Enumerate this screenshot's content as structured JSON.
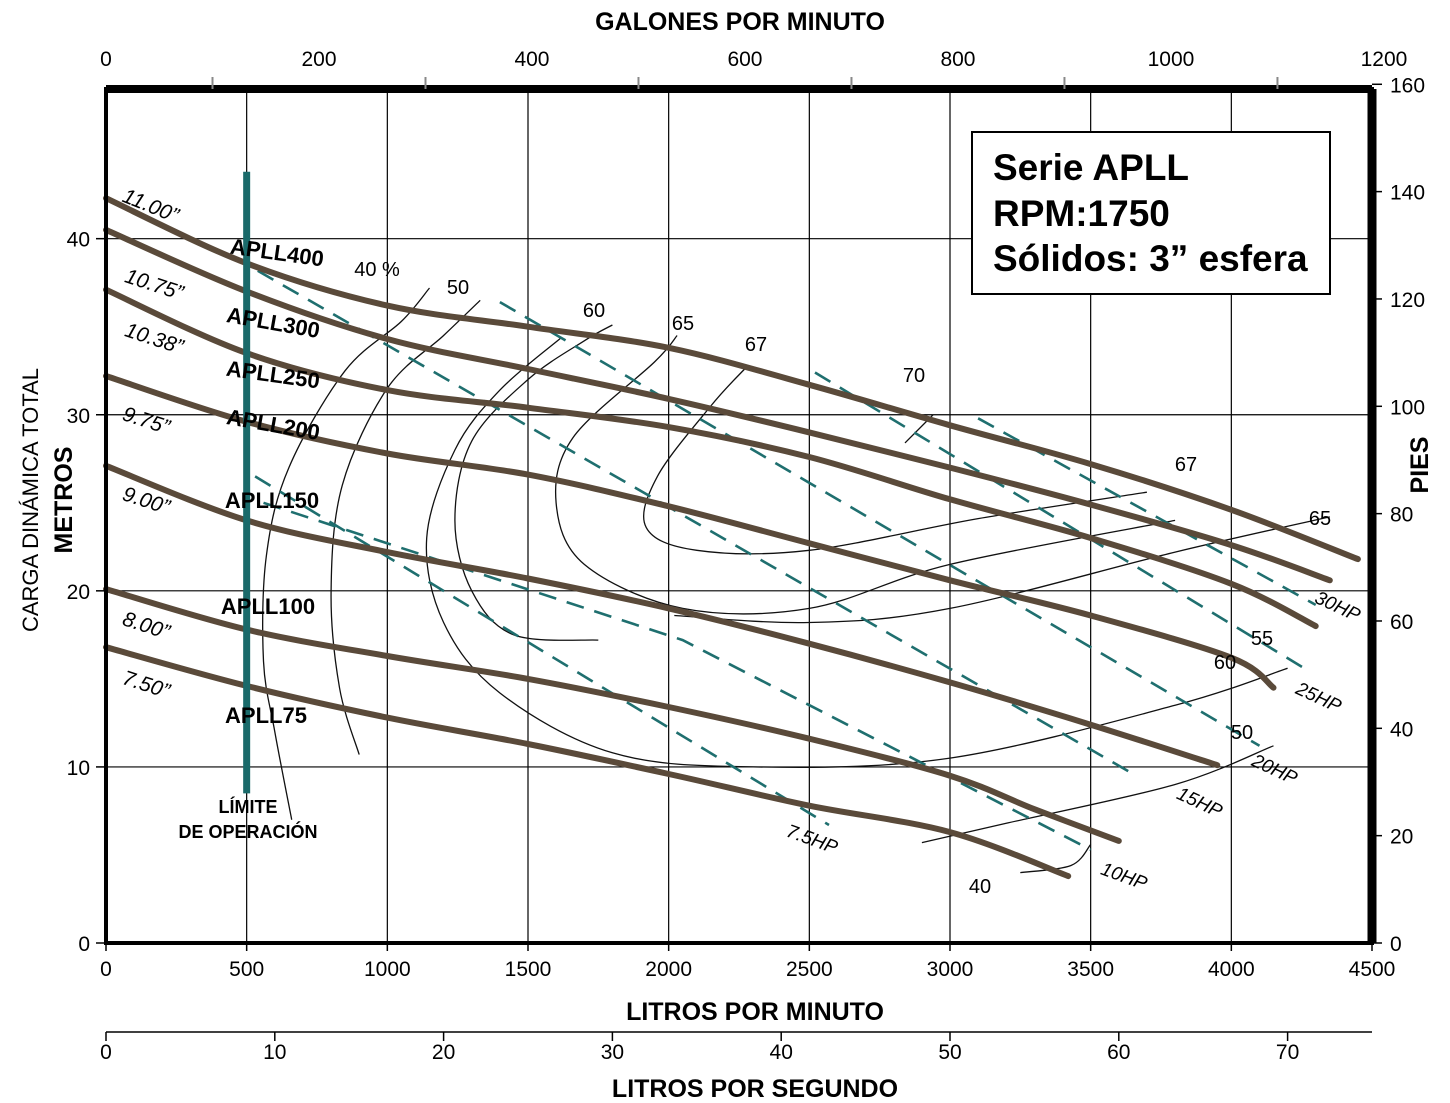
{
  "colors": {
    "head_curve": "#5a4a3a",
    "hp_line": "#1f6f6f",
    "limit_line": "#1a6a6a",
    "grid": "#000000",
    "frame": "#000000"
  },
  "chart_data": {
    "type": "line",
    "info_box": [
      "Serie APLL",
      "RPM:1750",
      "Sólidos: 3” esfera"
    ],
    "axes": {
      "x_bottom": {
        "label": "LITROS POR MINUTO",
        "range": [
          0,
          4500
        ],
        "ticks": [
          "0",
          "500",
          "1000",
          "1500",
          "2000",
          "2500",
          "3000",
          "3500",
          "4000",
          "4500"
        ]
      },
      "x_top": {
        "label": "GALONES POR MINUTO",
        "range": [
          0,
          1200
        ],
        "ticks": [
          "0",
          "200",
          "400",
          "600",
          "800",
          "1000",
          "1200"
        ]
      },
      "x_bottom2": {
        "label": "LITROS POR SEGUNDO",
        "ticks": [
          "0",
          "10",
          "20",
          "30",
          "40",
          "50",
          "60",
          "70"
        ]
      },
      "y_left": {
        "label_line1": "CARGA DINÁMICA TOTAL",
        "label_line2": "METROS",
        "range": [
          0,
          48.5
        ],
        "ticks": [
          "0",
          "10",
          "20",
          "30",
          "40"
        ]
      },
      "y_right": {
        "label": "PIES",
        "range": [
          0,
          160
        ],
        "ticks": [
          "0",
          "20",
          "40",
          "60",
          "80",
          "100",
          "120",
          "140",
          "160"
        ]
      },
      "grid": true
    },
    "head_curves": [
      {
        "diameter": "11.00”",
        "model": "APLL400",
        "points": [
          [
            0,
            42.3
          ],
          [
            500,
            38.6
          ],
          [
            1000,
            36.2
          ],
          [
            1500,
            35.0
          ],
          [
            2000,
            33.8
          ],
          [
            2500,
            31.7
          ],
          [
            3000,
            29.4
          ],
          [
            3500,
            27.2
          ],
          [
            4000,
            24.6
          ],
          [
            4450,
            21.8
          ]
        ]
      },
      {
        "diameter": "10.75”",
        "model": "APLL300",
        "points": [
          [
            0,
            40.5
          ],
          [
            500,
            37.0
          ],
          [
            1000,
            34.3
          ],
          [
            1500,
            32.6
          ],
          [
            2000,
            30.9
          ],
          [
            2500,
            29.0
          ],
          [
            3000,
            27.0
          ],
          [
            3500,
            24.9
          ],
          [
            4000,
            22.6
          ],
          [
            4350,
            20.6
          ]
        ]
      },
      {
        "diameter": "10.38”",
        "model": "APLL250",
        "points": [
          [
            0,
            37.1
          ],
          [
            500,
            33.5
          ],
          [
            1000,
            31.4
          ],
          [
            1500,
            30.4
          ],
          [
            2000,
            29.3
          ],
          [
            2500,
            27.6
          ],
          [
            3000,
            25.2
          ],
          [
            3500,
            23.0
          ],
          [
            4000,
            20.4
          ],
          [
            4300,
            18.0
          ]
        ]
      },
      {
        "diameter": "9.75”",
        "model": "APLL200",
        "points": [
          [
            0,
            32.2
          ],
          [
            500,
            29.6
          ],
          [
            1000,
            27.8
          ],
          [
            1500,
            26.6
          ],
          [
            2000,
            24.8
          ],
          [
            2500,
            22.7
          ],
          [
            3000,
            20.6
          ],
          [
            3500,
            18.6
          ],
          [
            4000,
            16.2
          ],
          [
            4150,
            14.5
          ]
        ]
      },
      {
        "diameter": "9.00”",
        "model": "APLL150",
        "points": [
          [
            0,
            27.1
          ],
          [
            500,
            24.0
          ],
          [
            1000,
            22.2
          ],
          [
            1500,
            20.7
          ],
          [
            2000,
            19.0
          ],
          [
            2500,
            17.0
          ],
          [
            3000,
            14.8
          ],
          [
            3500,
            12.4
          ],
          [
            3950,
            10.1
          ]
        ]
      },
      {
        "diameter": "8.00”",
        "model": "APLL100",
        "points": [
          [
            0,
            20.1
          ],
          [
            500,
            17.8
          ],
          [
            1000,
            16.3
          ],
          [
            1500,
            15.0
          ],
          [
            2000,
            13.4
          ],
          [
            2500,
            11.6
          ],
          [
            3000,
            9.5
          ],
          [
            3300,
            7.6
          ],
          [
            3600,
            5.8
          ]
        ]
      },
      {
        "diameter": "7.50”",
        "model": "APLL75",
        "points": [
          [
            0,
            16.8
          ],
          [
            500,
            14.6
          ],
          [
            1000,
            12.8
          ],
          [
            1500,
            11.3
          ],
          [
            2000,
            9.6
          ],
          [
            2500,
            7.8
          ],
          [
            3000,
            6.3
          ],
          [
            3420,
            3.8
          ]
        ]
      }
    ],
    "efficiency_curves": [
      {
        "label": "40 %",
        "points": [
          [
            660,
            7.0
          ],
          [
            600,
            12.0
          ],
          [
            560,
            16.0
          ],
          [
            570,
            22.0
          ],
          [
            650,
            27.0
          ],
          [
            850,
            32.5
          ],
          [
            1050,
            35.3
          ],
          [
            1150,
            37.2
          ]
        ]
      },
      {
        "label": "50",
        "points": [
          [
            900,
            10.7
          ],
          [
            830,
            14.5
          ],
          [
            800,
            20.0
          ],
          [
            840,
            26.0
          ],
          [
            1000,
            31.5
          ],
          [
            1200,
            34.5
          ],
          [
            1330,
            36.5
          ]
        ]
      },
      {
        "label": "60",
        "points": [
          [
            1750,
            17.2
          ],
          [
            1450,
            17.5
          ],
          [
            1300,
            20.0
          ],
          [
            1240,
            24.0
          ],
          [
            1300,
            28.5
          ],
          [
            1500,
            32.0
          ],
          [
            1700,
            34.2
          ],
          [
            1800,
            35.1
          ]
        ]
      },
      {
        "label": "65",
        "points": [
          [
            3800,
            24.0
          ],
          [
            3000,
            21.5
          ],
          [
            2500,
            19.0
          ],
          [
            2050,
            19.0
          ],
          [
            1700,
            21.5
          ],
          [
            1600,
            25.0
          ],
          [
            1660,
            28.7
          ],
          [
            1950,
            33.0
          ],
          [
            2030,
            34.5
          ]
        ]
      },
      {
        "label": "67",
        "points": [
          [
            3700,
            25.6
          ],
          [
            3100,
            24.1
          ],
          [
            2500,
            22.3
          ],
          [
            2100,
            22.3
          ],
          [
            1920,
            23.6
          ],
          [
            1960,
            26.5
          ],
          [
            2150,
            30.5
          ],
          [
            2270,
            32.6
          ]
        ]
      },
      {
        "label": "70",
        "points": [
          [
            2840,
            28.4
          ],
          [
            2940,
            30.0
          ]
        ]
      },
      {
        "label": "65",
        "points": [
          [
            4350,
            24.2
          ],
          [
            3800,
            22.2
          ],
          [
            3000,
            19.0
          ],
          [
            2500,
            18.2
          ],
          [
            2020,
            18.6
          ]
        ]
      },
      {
        "label": "60",
        "points": [
          [
            4200,
            15.6
          ],
          [
            3800,
            13.5
          ],
          [
            3000,
            10.5
          ],
          [
            2300,
            10.0
          ],
          [
            1800,
            10.8
          ],
          [
            1400,
            14.2
          ],
          [
            1200,
            18.2
          ],
          [
            1140,
            23.0
          ],
          [
            1240,
            28.0
          ],
          [
            1400,
            31.4
          ],
          [
            1620,
            34.4
          ]
        ]
      },
      {
        "label": "50",
        "points": [
          [
            4150,
            11.2
          ],
          [
            3800,
            9.0
          ],
          [
            3200,
            6.8
          ],
          [
            2900,
            5.7
          ]
        ]
      },
      {
        "label": "40",
        "points": [
          [
            3250,
            4.0
          ],
          [
            3430,
            4.4
          ],
          [
            3500,
            5.6
          ]
        ]
      }
    ],
    "hp_lines": [
      {
        "label": "30HP",
        "points": [
          [
            3100,
            29.8
          ],
          [
            4300,
            19.2
          ]
        ]
      },
      {
        "label": "25HP",
        "points": [
          [
            2520,
            32.4
          ],
          [
            4270,
            15.5
          ]
        ]
      },
      {
        "label": "20HP",
        "points": [
          [
            1400,
            36.4
          ],
          [
            4100,
            11.2
          ]
        ]
      },
      {
        "label": "15HP",
        "points": [
          [
            450,
            39.0
          ],
          [
            3640,
            9.7
          ]
        ]
      },
      {
        "label": "10HP",
        "points": [
          [
            560,
            25.0
          ],
          [
            2050,
            17.2
          ],
          [
            3500,
            5.3
          ]
        ]
      },
      {
        "label": "7.5HP",
        "points": [
          [
            530,
            26.5
          ],
          [
            2570,
            6.7
          ]
        ]
      }
    ],
    "limit_line": {
      "x": 500,
      "y_range": [
        8.5,
        43.8
      ],
      "label_line1": "LÍMITE",
      "label_line2": "DE OPERACIÓN"
    }
  }
}
